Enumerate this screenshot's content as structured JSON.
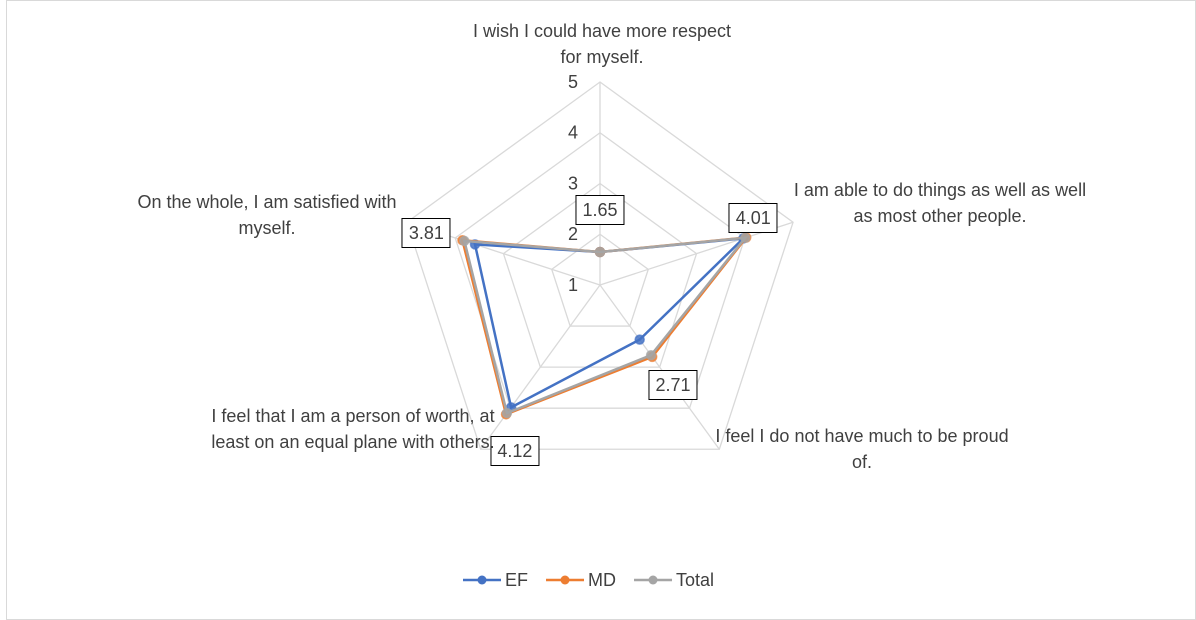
{
  "chart_data": {
    "type": "radar",
    "categories": [
      "I wish I could have more respect for myself.",
      "I am able to do things as well as well as most other people.",
      "I feel I do not have much to be proud of.",
      "I feel that I am a person of worth, at least on an equal plane with others.",
      "On the whole, I am satisfied with myself."
    ],
    "series": [
      {
        "name": "EF",
        "color": "#4472c4",
        "values": [
          1.65,
          3.97,
          2.33,
          3.98,
          3.59
        ]
      },
      {
        "name": "MD",
        "color": "#ed7d31",
        "values": [
          1.65,
          4.03,
          2.75,
          4.15,
          3.85
        ]
      },
      {
        "name": "Total",
        "color": "#a5a5a5",
        "values": [
          1.65,
          4.01,
          2.71,
          4.12,
          3.81
        ]
      }
    ],
    "ylim": [
      1,
      5
    ],
    "yticks": [
      1,
      2,
      3,
      4,
      5
    ],
    "grid": true,
    "legend": "bottom"
  }
}
